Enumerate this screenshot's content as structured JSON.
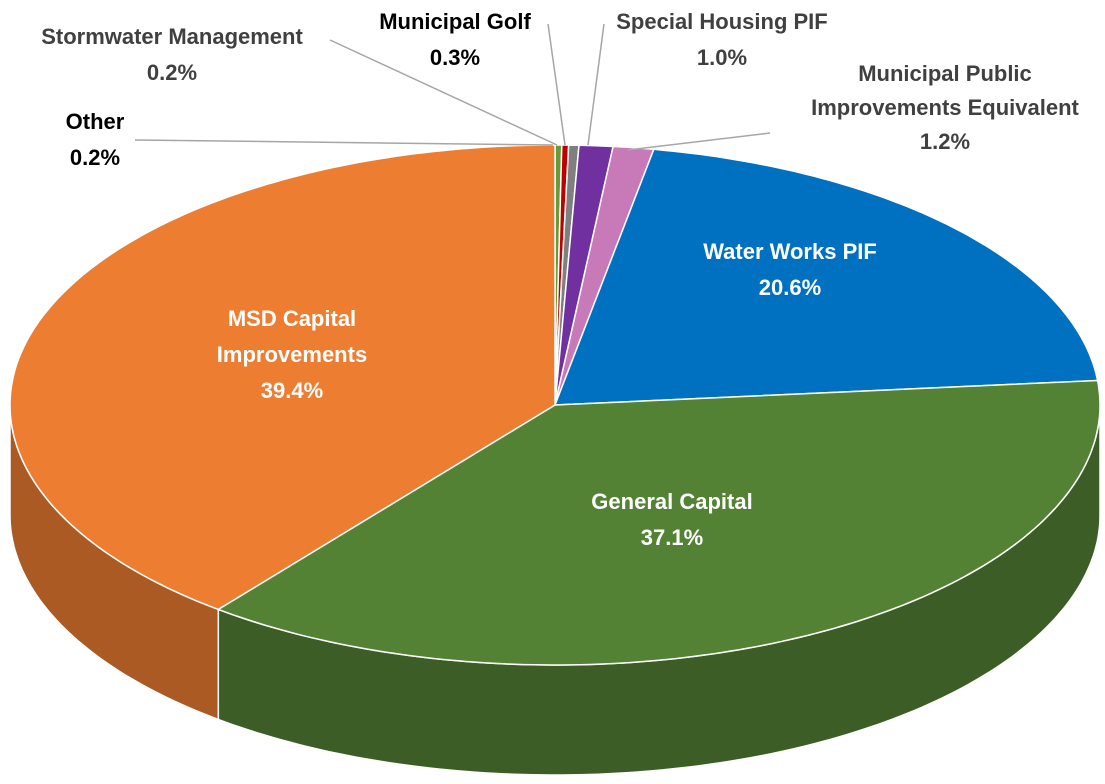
{
  "chart_data": {
    "type": "pie3d",
    "categories": [
      "Other",
      "Stormwater Management",
      "Municipal Golf",
      "Special Housing PIF",
      "Municipal Public Improvements Equivalent",
      "Water Works PIF",
      "General Capital",
      "MSD Capital Improvements"
    ],
    "values": [
      0.2,
      0.2,
      0.3,
      1.0,
      1.2,
      20.6,
      37.1,
      39.4
    ],
    "value_labels": [
      "0.2%",
      "0.2%",
      "0.3%",
      "1.0%",
      "1.2%",
      "20.6%",
      "37.1%",
      "39.4%"
    ],
    "colors": [
      "#6a9a3a",
      "#c00000",
      "#7f7f7f",
      "#7030a0",
      "#c879b8",
      "#0070c0",
      "#548235",
      "#ed7d31"
    ]
  }
}
